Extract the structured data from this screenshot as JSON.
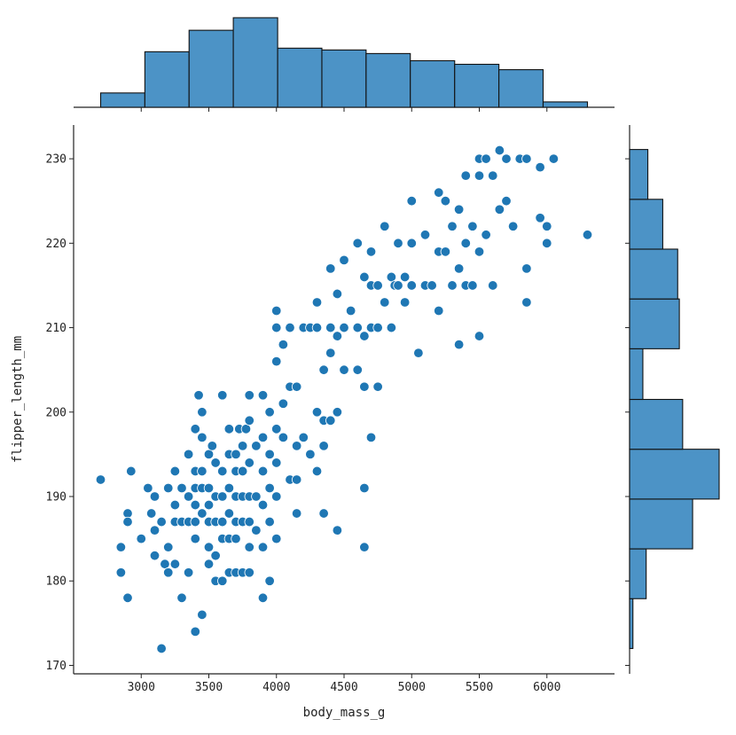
{
  "chart_data": {
    "type": "scatter",
    "title": "",
    "xlabel": "body_mass_g",
    "ylabel": "flipper_length_mm",
    "xlim": [
      2500,
      6500
    ],
    "ylim": [
      169,
      234
    ],
    "xticks": [
      3000,
      3500,
      4000,
      4500,
      5000,
      5500,
      6000
    ],
    "yticks": [
      170,
      180,
      190,
      200,
      210,
      220,
      230
    ],
    "xtick_labels": [
      "3000",
      "3500",
      "4000",
      "4500",
      "5000",
      "5500",
      "6000"
    ],
    "ytick_labels": [
      "170",
      "180",
      "190",
      "200",
      "210",
      "220",
      "230"
    ],
    "grid": false,
    "points": [
      [
        2700,
        192
      ],
      [
        2850,
        184
      ],
      [
        2850,
        181
      ],
      [
        2900,
        188
      ],
      [
        2900,
        187
      ],
      [
        2900,
        178
      ],
      [
        2925,
        193
      ],
      [
        3000,
        185
      ],
      [
        3050,
        191
      ],
      [
        3075,
        188
      ],
      [
        3100,
        190
      ],
      [
        3100,
        186
      ],
      [
        3100,
        183
      ],
      [
        3150,
        172
      ],
      [
        3150,
        187
      ],
      [
        3175,
        182
      ],
      [
        3200,
        191
      ],
      [
        3200,
        184
      ],
      [
        3200,
        181
      ],
      [
        3250,
        193
      ],
      [
        3250,
        189
      ],
      [
        3250,
        187
      ],
      [
        3250,
        182
      ],
      [
        3300,
        178
      ],
      [
        3300,
        191
      ],
      [
        3300,
        187
      ],
      [
        3350,
        195
      ],
      [
        3350,
        190
      ],
      [
        3350,
        187
      ],
      [
        3350,
        181
      ],
      [
        3400,
        198
      ],
      [
        3400,
        193
      ],
      [
        3400,
        191
      ],
      [
        3400,
        189
      ],
      [
        3400,
        187
      ],
      [
        3400,
        185
      ],
      [
        3400,
        174
      ],
      [
        3425,
        202
      ],
      [
        3450,
        200
      ],
      [
        3450,
        197
      ],
      [
        3450,
        193
      ],
      [
        3450,
        191
      ],
      [
        3450,
        188
      ],
      [
        3450,
        176
      ],
      [
        3500,
        195
      ],
      [
        3500,
        191
      ],
      [
        3500,
        189
      ],
      [
        3500,
        187
      ],
      [
        3500,
        184
      ],
      [
        3500,
        182
      ],
      [
        3525,
        196
      ],
      [
        3550,
        194
      ],
      [
        3550,
        190
      ],
      [
        3550,
        187
      ],
      [
        3550,
        183
      ],
      [
        3550,
        180
      ],
      [
        3600,
        202
      ],
      [
        3600,
        193
      ],
      [
        3600,
        190
      ],
      [
        3600,
        187
      ],
      [
        3600,
        185
      ],
      [
        3600,
        180
      ],
      [
        3650,
        198
      ],
      [
        3650,
        195
      ],
      [
        3650,
        191
      ],
      [
        3650,
        188
      ],
      [
        3650,
        185
      ],
      [
        3650,
        181
      ],
      [
        3700,
        195
      ],
      [
        3700,
        193
      ],
      [
        3700,
        190
      ],
      [
        3700,
        187
      ],
      [
        3700,
        185
      ],
      [
        3700,
        181
      ],
      [
        3725,
        198
      ],
      [
        3750,
        196
      ],
      [
        3750,
        193
      ],
      [
        3750,
        190
      ],
      [
        3750,
        187
      ],
      [
        3750,
        181
      ],
      [
        3775,
        198
      ],
      [
        3800,
        202
      ],
      [
        3800,
        199
      ],
      [
        3800,
        194
      ],
      [
        3800,
        190
      ],
      [
        3800,
        187
      ],
      [
        3800,
        184
      ],
      [
        3800,
        181
      ],
      [
        3850,
        196
      ],
      [
        3850,
        190
      ],
      [
        3850,
        186
      ],
      [
        3900,
        202
      ],
      [
        3900,
        197
      ],
      [
        3900,
        193
      ],
      [
        3900,
        189
      ],
      [
        3900,
        184
      ],
      [
        3900,
        178
      ],
      [
        3950,
        200
      ],
      [
        3950,
        195
      ],
      [
        3950,
        191
      ],
      [
        3950,
        187
      ],
      [
        3950,
        180
      ],
      [
        4000,
        212
      ],
      [
        4000,
        210
      ],
      [
        4000,
        206
      ],
      [
        4000,
        198
      ],
      [
        4000,
        194
      ],
      [
        4000,
        190
      ],
      [
        4000,
        185
      ],
      [
        4050,
        208
      ],
      [
        4050,
        201
      ],
      [
        4050,
        197
      ],
      [
        4100,
        210
      ],
      [
        4100,
        203
      ],
      [
        4100,
        192
      ],
      [
        4150,
        203
      ],
      [
        4150,
        196
      ],
      [
        4150,
        192
      ],
      [
        4150,
        188
      ],
      [
        4200,
        210
      ],
      [
        4200,
        197
      ],
      [
        4250,
        210
      ],
      [
        4250,
        195
      ],
      [
        4300,
        213
      ],
      [
        4300,
        210
      ],
      [
        4300,
        200
      ],
      [
        4300,
        193
      ],
      [
        4350,
        205
      ],
      [
        4350,
        199
      ],
      [
        4350,
        196
      ],
      [
        4350,
        188
      ],
      [
        4400,
        217
      ],
      [
        4400,
        210
      ],
      [
        4400,
        207
      ],
      [
        4400,
        199
      ],
      [
        4450,
        214
      ],
      [
        4450,
        209
      ],
      [
        4450,
        200
      ],
      [
        4450,
        186
      ],
      [
        4500,
        218
      ],
      [
        4500,
        210
      ],
      [
        4500,
        205
      ],
      [
        4550,
        212
      ],
      [
        4600,
        220
      ],
      [
        4600,
        210
      ],
      [
        4600,
        205
      ],
      [
        4650,
        216
      ],
      [
        4650,
        209
      ],
      [
        4650,
        203
      ],
      [
        4650,
        191
      ],
      [
        4650,
        184
      ],
      [
        4700,
        219
      ],
      [
        4700,
        215
      ],
      [
        4700,
        210
      ],
      [
        4700,
        197
      ],
      [
        4750,
        215
      ],
      [
        4750,
        210
      ],
      [
        4750,
        203
      ],
      [
        4800,
        222
      ],
      [
        4800,
        213
      ],
      [
        4850,
        216
      ],
      [
        4850,
        210
      ],
      [
        4875,
        215
      ],
      [
        4900,
        220
      ],
      [
        4900,
        215
      ],
      [
        4950,
        216
      ],
      [
        4950,
        213
      ],
      [
        5000,
        225
      ],
      [
        5000,
        220
      ],
      [
        5000,
        215
      ],
      [
        5050,
        207
      ],
      [
        5100,
        221
      ],
      [
        5100,
        215
      ],
      [
        5150,
        215
      ],
      [
        5200,
        226
      ],
      [
        5200,
        219
      ],
      [
        5200,
        212
      ],
      [
        5250,
        225
      ],
      [
        5250,
        219
      ],
      [
        5300,
        222
      ],
      [
        5300,
        215
      ],
      [
        5350,
        224
      ],
      [
        5350,
        217
      ],
      [
        5350,
        208
      ],
      [
        5400,
        228
      ],
      [
        5400,
        220
      ],
      [
        5400,
        215
      ],
      [
        5450,
        222
      ],
      [
        5450,
        215
      ],
      [
        5500,
        230
      ],
      [
        5500,
        228
      ],
      [
        5500,
        219
      ],
      [
        5500,
        209
      ],
      [
        5550,
        230
      ],
      [
        5550,
        221
      ],
      [
        5600,
        228
      ],
      [
        5600,
        215
      ],
      [
        5650,
        231
      ],
      [
        5650,
        224
      ],
      [
        5700,
        230
      ],
      [
        5700,
        225
      ],
      [
        5750,
        222
      ],
      [
        5800,
        230
      ],
      [
        5850,
        230
      ],
      [
        5850,
        217
      ],
      [
        5850,
        213
      ],
      [
        5950,
        229
      ],
      [
        5950,
        223
      ],
      [
        6000,
        222
      ],
      [
        6000,
        220
      ],
      [
        6050,
        230
      ],
      [
        6300,
        221
      ]
    ],
    "marginal_x": {
      "bin_edges": [
        2700,
        3027,
        3354,
        3681,
        4009,
        4336,
        4663,
        4990,
        5318,
        5645,
        5972,
        6300
      ],
      "counts": [
        8,
        31,
        43,
        50,
        33,
        32,
        30,
        26,
        24,
        21,
        3
      ]
    },
    "marginal_y": {
      "bin_edges": [
        172,
        177.9,
        183.8,
        189.7,
        195.6,
        201.5,
        207.5,
        213.4,
        219.3,
        225.2,
        231.1
      ],
      "counts": [
        2,
        10,
        38,
        54,
        32,
        8,
        30,
        29,
        20,
        11
      ]
    },
    "colors": {
      "points": "#1f77b4",
      "bars": "#4c93c6",
      "edge": "#111111"
    }
  }
}
